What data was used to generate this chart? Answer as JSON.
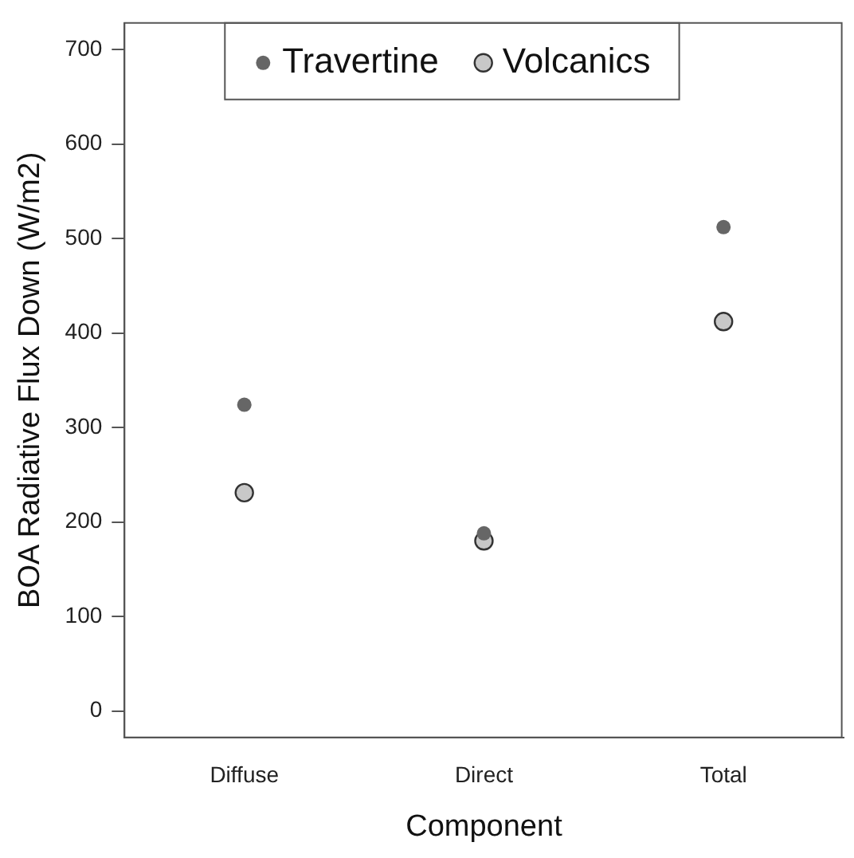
{
  "chart_data": {
    "type": "scatter",
    "xlabel": "Component",
    "ylabel": "BOA Radiative Flux Down (W/m2)",
    "categories": [
      "Diffuse",
      "Direct",
      "Total"
    ],
    "series": [
      {
        "name": "Travertine",
        "color": "#666666",
        "values": [
          324,
          188,
          512
        ]
      },
      {
        "name": "Volcanics",
        "color": "#c8c8c8",
        "values": [
          231,
          180,
          412
        ]
      }
    ],
    "ylim": [
      -28,
      728
    ],
    "yticks": [
      0,
      100,
      200,
      300,
      400,
      500,
      600,
      700
    ],
    "grid": false,
    "legend": "top",
    "marker": "circle"
  }
}
